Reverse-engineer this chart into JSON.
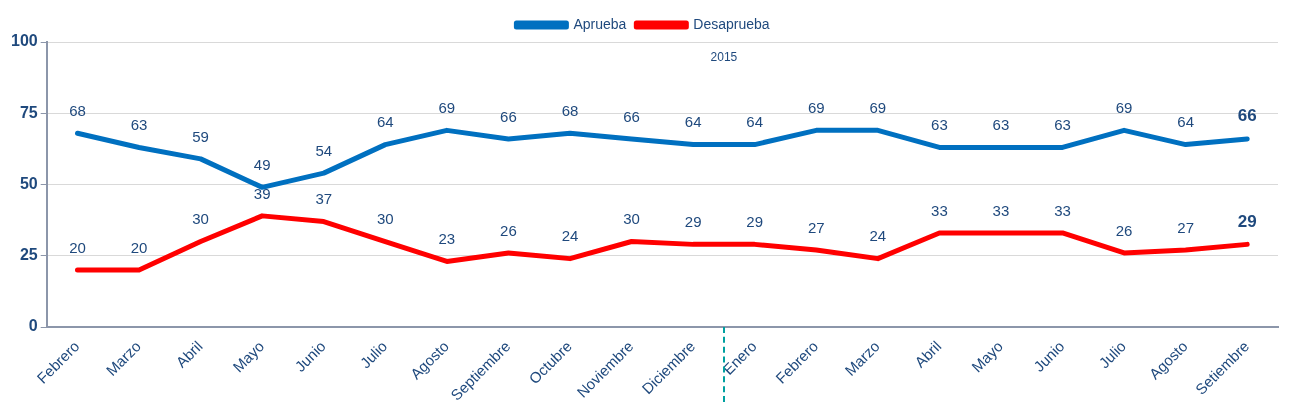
{
  "chart_data": {
    "type": "line",
    "categories": [
      "Febrero",
      "Marzo",
      "Abril",
      "Mayo",
      "Junio",
      "Julio",
      "Agosto",
      "Septiembre",
      "Octubre",
      "Noviembre",
      "Diciembre",
      "Enero",
      "Febrero",
      "Marzo",
      "Abril",
      "Mayo",
      "Junio",
      "Julio",
      "Agosto",
      "Setiembre"
    ],
    "series": [
      {
        "name": "Aprueba",
        "color": "#0070c0",
        "values": [
          68,
          63,
          59,
          49,
          54,
          64,
          69,
          66,
          68,
          66,
          64,
          64,
          69,
          69,
          63,
          63,
          63,
          69,
          64,
          66
        ]
      },
      {
        "name": "Desaprueba",
        "color": "#ff0000",
        "values": [
          20,
          20,
          30,
          39,
          37,
          30,
          23,
          26,
          24,
          30,
          29,
          29,
          27,
          24,
          33,
          33,
          33,
          26,
          27,
          29
        ]
      }
    ],
    "ylim": [
      0,
      100
    ],
    "yticks": [
      0,
      25,
      50,
      75,
      100
    ],
    "grid": "y",
    "data_labels": true,
    "legend": "top",
    "marker": "none",
    "line_style": "solid",
    "annotations": [
      "2015"
    ]
  }
}
